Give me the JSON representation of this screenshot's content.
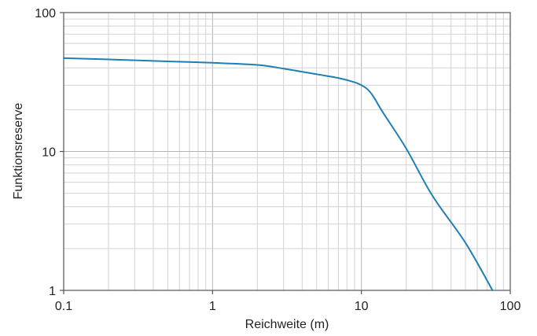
{
  "chart_data": {
    "type": "line",
    "title": "",
    "xlabel": "Reichweite (m)",
    "ylabel": "Funktionsreserve",
    "x_scale": "log",
    "y_scale": "log",
    "xlim": [
      0.1,
      100
    ],
    "ylim": [
      1,
      100
    ],
    "x_ticks": [
      {
        "value": 0.1,
        "label": "0.1"
      },
      {
        "value": 1,
        "label": "1"
      },
      {
        "value": 10,
        "label": "10"
      },
      {
        "value": 100,
        "label": "100"
      }
    ],
    "y_ticks": [
      {
        "value": 1,
        "label": "1"
      },
      {
        "value": 10,
        "label": "10"
      },
      {
        "value": 100,
        "label": "100"
      }
    ],
    "grid": true,
    "line_color": "#1f7fb3",
    "series": [
      {
        "x": [
          0.1,
          0.2,
          0.5,
          1,
          2,
          3,
          5,
          7,
          9,
          10,
          11,
          12,
          14,
          20,
          30,
          50,
          76
        ],
        "y": [
          47,
          46,
          44.5,
          43.5,
          42,
          39.5,
          36,
          33.8,
          31.5,
          30,
          28,
          25,
          19,
          10.5,
          4.8,
          2.2,
          1
        ]
      }
    ]
  }
}
